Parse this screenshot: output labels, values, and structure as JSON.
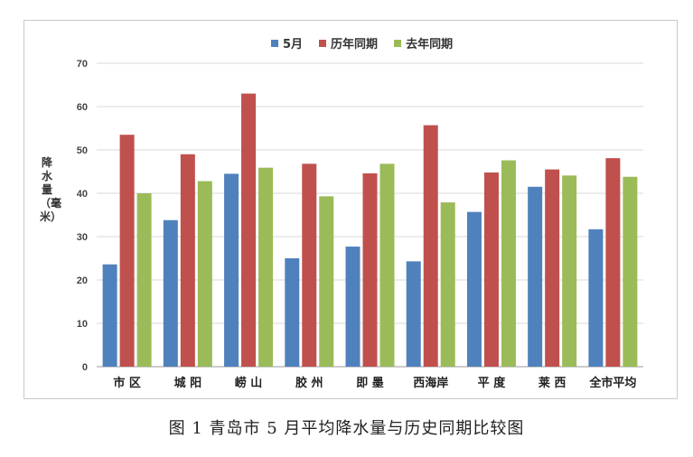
{
  "caption": "图 1 青岛市 5 月平均降水量与历史同期比较图",
  "chart_data": {
    "type": "bar",
    "title": "",
    "ylabel": "降水量（毫米）",
    "xlabel": "",
    "ylim": [
      0,
      70
    ],
    "yticks": [
      0,
      10,
      20,
      30,
      40,
      50,
      60,
      70
    ],
    "grid": true,
    "legend_position": "top",
    "categories": [
      "市 区",
      "城 阳",
      "崂 山",
      "胶 州",
      "即 墨",
      "西海岸",
      "平 度",
      "莱 西",
      "全市平均"
    ],
    "series": [
      {
        "name": "5月",
        "color": "#4f81bd",
        "values": [
          23.6,
          33.8,
          44.5,
          25.0,
          27.7,
          24.3,
          35.7,
          41.5,
          31.7
        ]
      },
      {
        "name": "历年同期",
        "color": "#c0504d",
        "values": [
          53.5,
          49.0,
          63.0,
          46.8,
          44.6,
          55.7,
          44.8,
          45.5,
          48.1
        ]
      },
      {
        "name": "去年同期",
        "color": "#9bbb59",
        "values": [
          40.0,
          42.8,
          45.9,
          39.3,
          46.8,
          37.9,
          47.6,
          44.1,
          43.8
        ]
      }
    ]
  }
}
